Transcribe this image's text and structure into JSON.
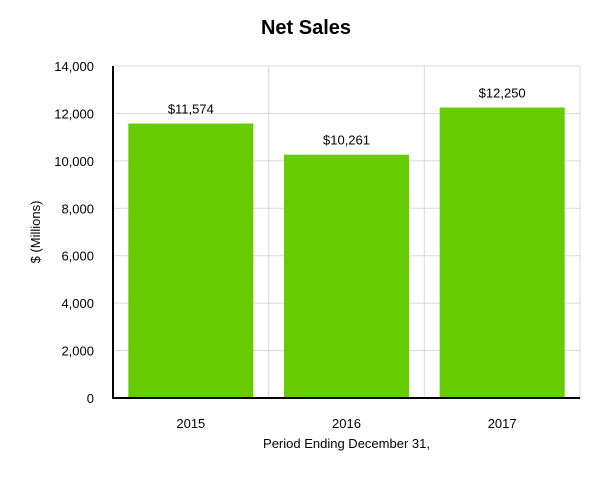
{
  "chart_data": {
    "type": "bar",
    "title": "Net Sales",
    "xlabel": "Period Ending December 31,",
    "ylabel": "$ (Millions)",
    "categories": [
      "2015",
      "2016",
      "2017"
    ],
    "values": [
      11574,
      10261,
      12250
    ],
    "data_labels": [
      "$11,574",
      "$10,261",
      "$12,250"
    ],
    "ylim": [
      0,
      14000
    ],
    "yticks": [
      0,
      2000,
      4000,
      6000,
      8000,
      10000,
      12000,
      14000
    ],
    "ytick_labels": [
      "0",
      "2,000",
      "4,000",
      "6,000",
      "8,000",
      "10,000",
      "12,000",
      "14,000"
    ],
    "grid": true,
    "legend": "none",
    "bar_color": "#66cc00"
  }
}
